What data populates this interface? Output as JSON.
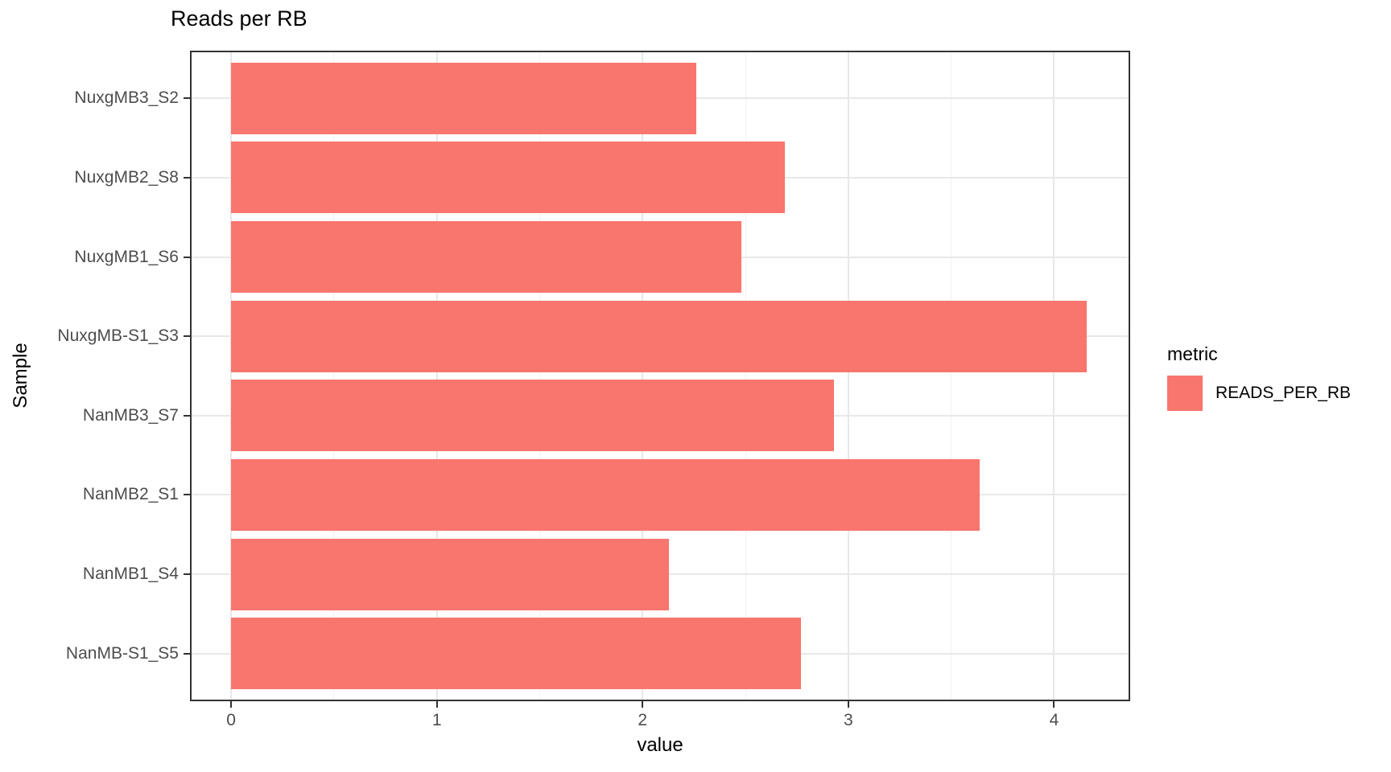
{
  "chart_data": {
    "type": "bar",
    "orientation": "horizontal",
    "title": "Reads per RB",
    "xlabel": "value",
    "ylabel": "Sample",
    "categories": [
      "NuxgMB3_S2",
      "NuxgMB2_S8",
      "NuxgMB1_S6",
      "NuxgMB-S1_S3",
      "NanMB3_S7",
      "NanMB2_S1",
      "NanMB1_S4",
      "NanMB-S1_S5"
    ],
    "series": [
      {
        "name": "READS_PER_RB",
        "color": "#F8766D",
        "values": [
          2.26,
          2.69,
          2.48,
          4.16,
          2.93,
          3.64,
          2.13,
          2.77
        ]
      }
    ],
    "xlim": [
      -0.2,
      4.37
    ],
    "x_ticks": [
      0,
      1,
      2,
      3,
      4
    ],
    "x_minor_ticks": [
      0.5,
      1.5,
      2.5,
      3.5
    ],
    "bar_width_ratio": 0.9,
    "grid": true,
    "legend": {
      "title": "metric",
      "position": "right",
      "entries": [
        {
          "label": "READS_PER_RB",
          "color": "#F8766D"
        }
      ]
    }
  },
  "colors": {
    "bar_fill": "#F8766D",
    "panel_border": "#333333",
    "grid_major": "#e8e8e8",
    "grid_minor": "#f2f2f2",
    "tick_text": "#4d4d4d",
    "title_text": "#000000",
    "background": "#ffffff"
  }
}
